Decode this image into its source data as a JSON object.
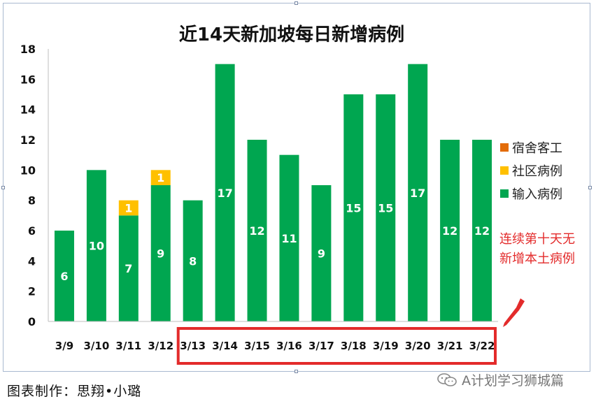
{
  "chart_data": {
    "type": "bar",
    "stacked": true,
    "title": "近14天新加坡每日新增病例",
    "categories": [
      "3/9",
      "3/10",
      "3/11",
      "3/12",
      "3/13",
      "3/14",
      "3/15",
      "3/16",
      "3/17",
      "3/18",
      "3/19",
      "3/20",
      "3/21",
      "3/22"
    ],
    "series": [
      {
        "name": "输入病例",
        "color": "#00a650",
        "values": [
          6,
          10,
          7,
          9,
          8,
          17,
          12,
          11,
          9,
          15,
          15,
          17,
          12,
          12
        ]
      },
      {
        "name": "社区病例",
        "color": "#ffc000",
        "values": [
          0,
          0,
          1,
          1,
          0,
          0,
          0,
          0,
          0,
          0,
          0,
          0,
          0,
          0
        ]
      },
      {
        "name": "宿舍客工",
        "color": "#e36c09",
        "values": [
          0,
          0,
          0,
          0,
          0,
          0,
          0,
          0,
          0,
          0,
          0,
          0,
          0,
          0
        ]
      }
    ],
    "ylim": [
      0,
      18
    ],
    "yticks": [
      0,
      2,
      4,
      6,
      8,
      10,
      12,
      14,
      16,
      18
    ],
    "xlabel": "",
    "ylabel": "",
    "grid": false,
    "legend_position": "right",
    "annotation": {
      "lines": [
        "连续第十天无",
        "新增本土病例"
      ],
      "color": "#e32b2b",
      "highlighted_categories": [
        "3/13",
        "3/14",
        "3/15",
        "3/16",
        "3/17",
        "3/18",
        "3/19",
        "3/20",
        "3/21",
        "3/22"
      ]
    }
  },
  "credit": "图表制作：思翔•小璐",
  "watermark": "A计划学习狮城篇"
}
